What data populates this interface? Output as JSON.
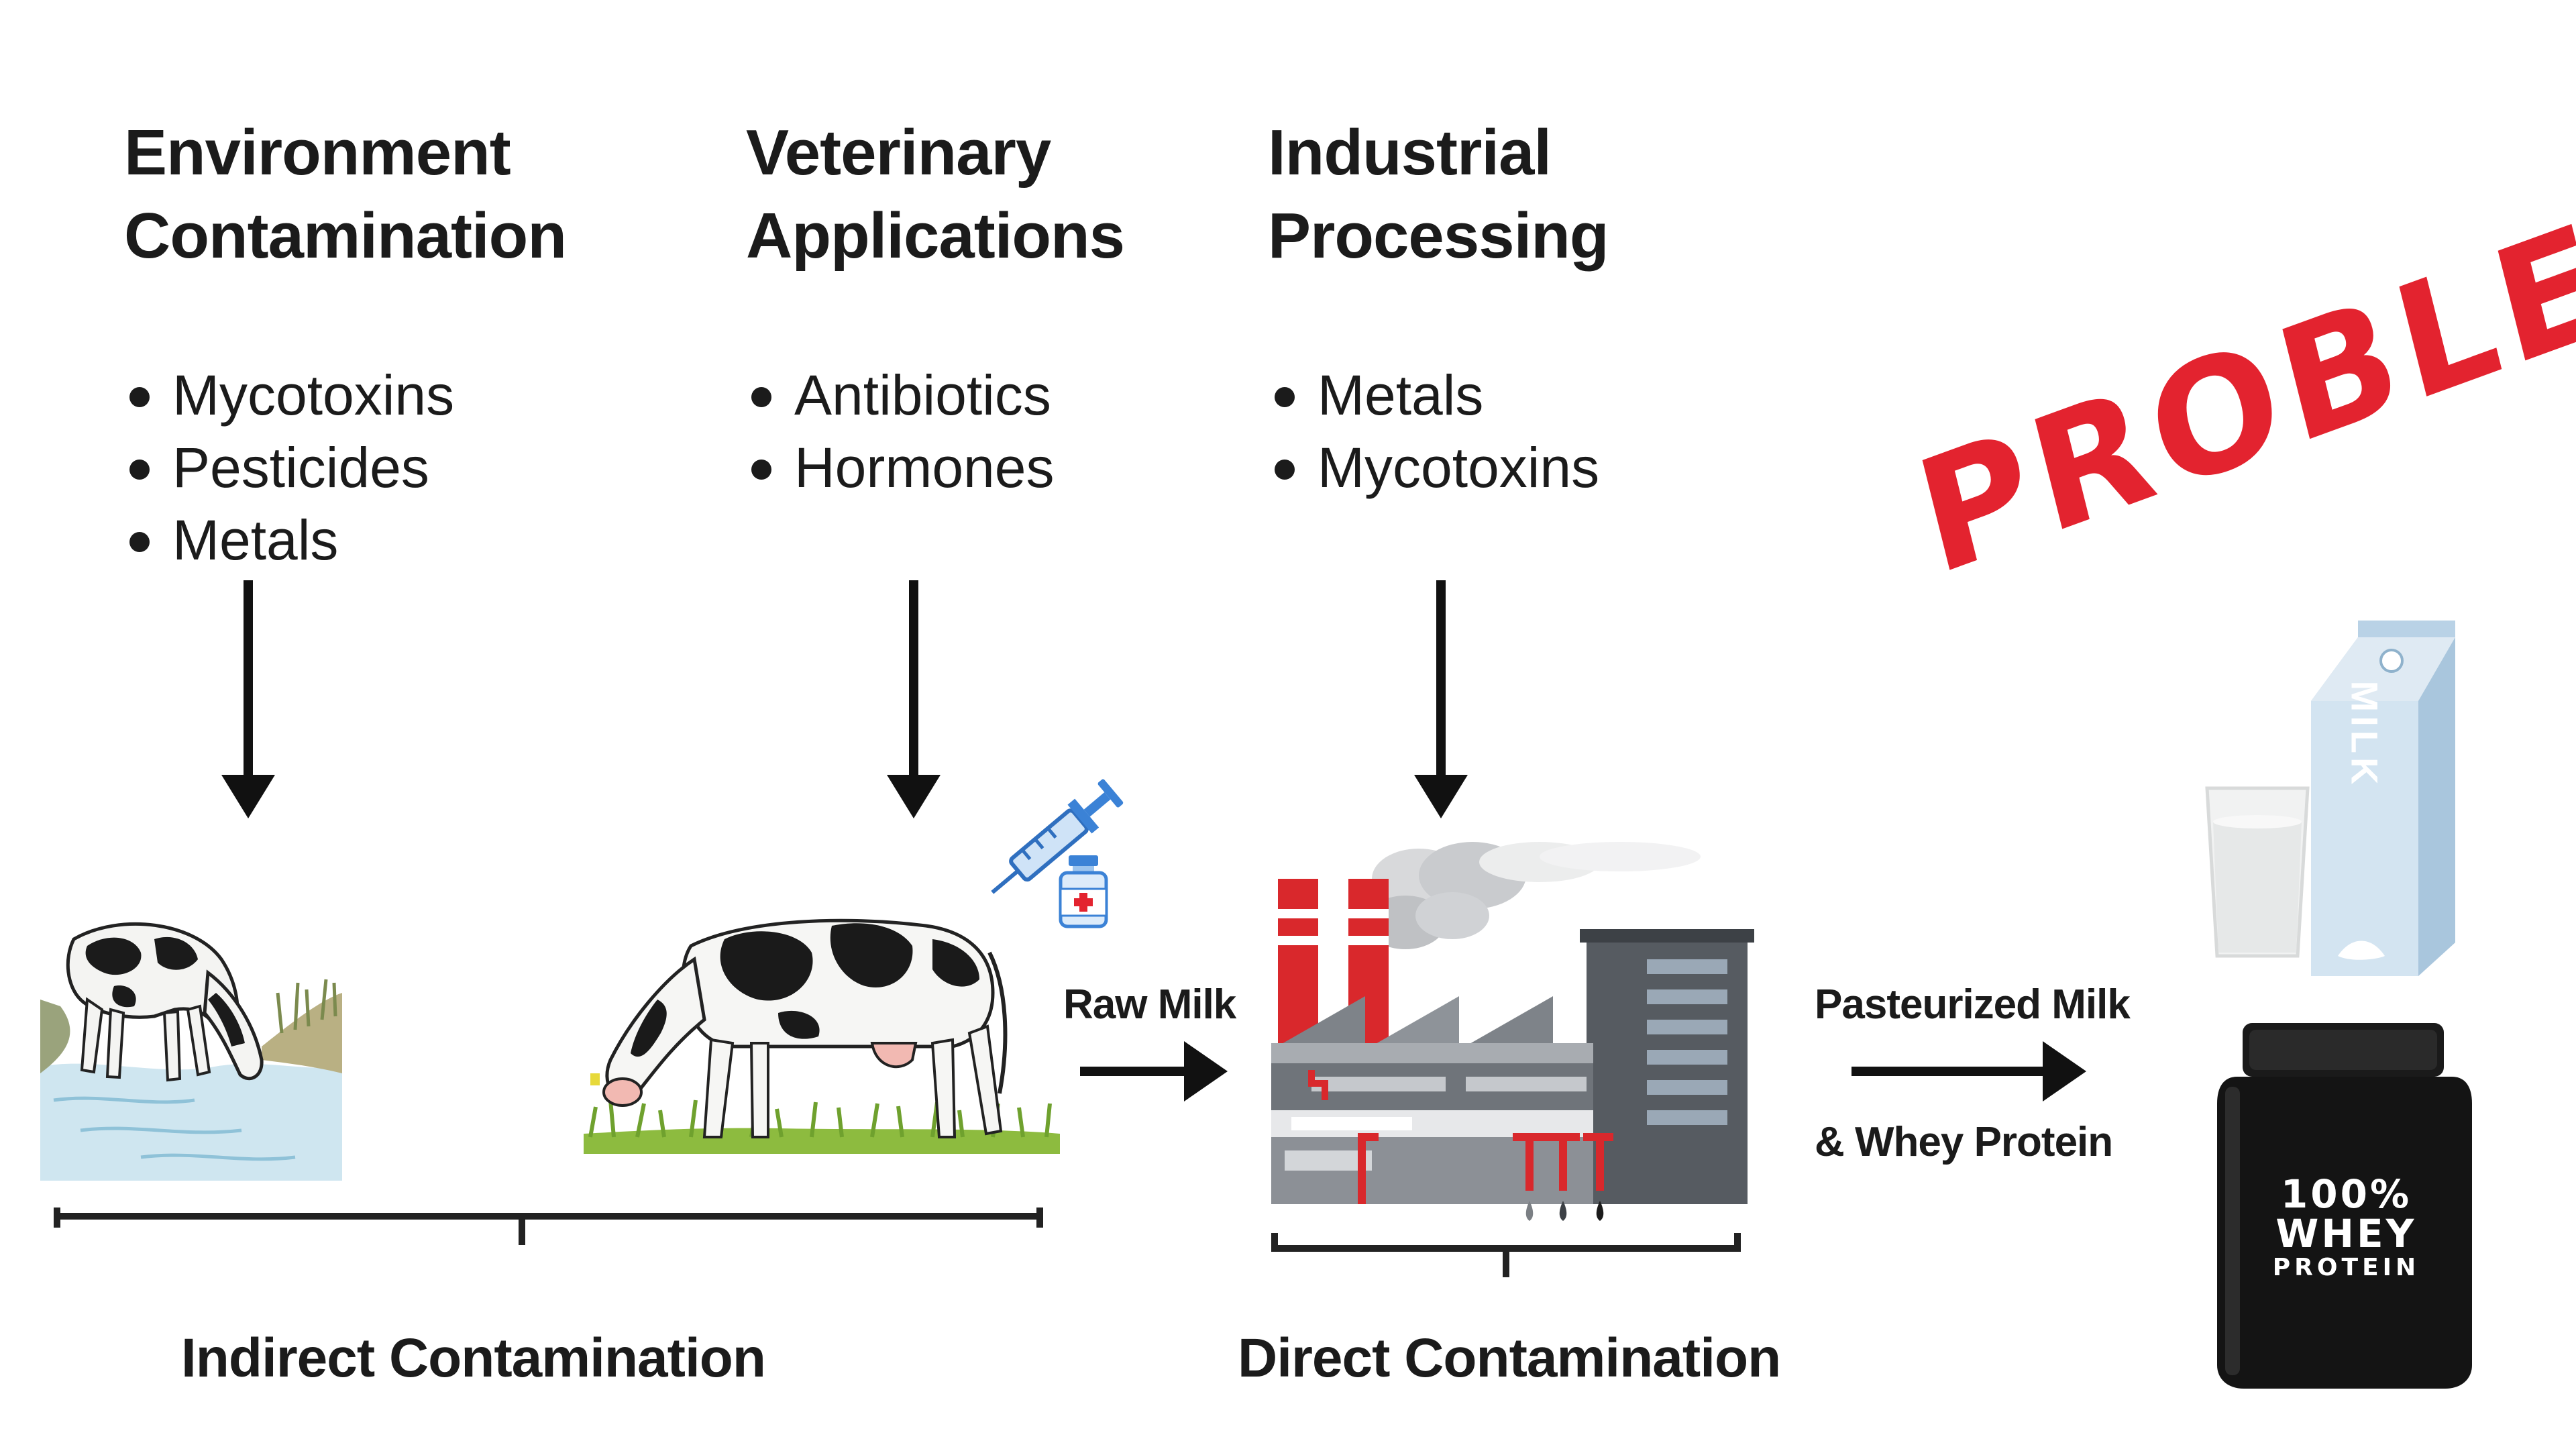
{
  "columns": [
    {
      "heading": [
        "Environment",
        "Contamination"
      ],
      "items": [
        "Mycotoxins",
        "Pesticides",
        "Metals"
      ]
    },
    {
      "heading": [
        "Veterinary",
        "Applications"
      ],
      "items": [
        "Antibiotics",
        "Hormones"
      ]
    },
    {
      "heading": [
        "Industrial",
        "Processing"
      ],
      "items": [
        "Metals",
        "Mycotoxins"
      ]
    }
  ],
  "stamp": {
    "text": "PROBLEM",
    "color": "#e3232f"
  },
  "flow": {
    "raw_milk": "Raw Milk",
    "pasteurized_line1": "Pasteurized Milk",
    "pasteurized_line2": "& Whey Protein"
  },
  "groups": {
    "indirect": "Indirect Contamination",
    "direct": "Direct Contamination"
  },
  "products": {
    "carton_text": "MILK",
    "whey_line1": "100%",
    "whey_line2": "WHEY",
    "whey_line3": "PROTEIN"
  },
  "icons": [
    "arrow-down-icon",
    "cow-drinking-icon",
    "cow-grazing-icon",
    "syringe-icon",
    "vial-icon",
    "factory-icon",
    "arrow-right-icon",
    "milk-glass-icon",
    "milk-carton-icon",
    "whey-tub-icon"
  ],
  "colors": {
    "text": "#1b1b1b",
    "stamp": "#e3232f",
    "factory_red": "#d9282c",
    "factory_gray": "#6f747a",
    "syringe_blue": "#3b82d6",
    "carton_blue": "#cfe1ef",
    "tub_black": "#141414"
  }
}
